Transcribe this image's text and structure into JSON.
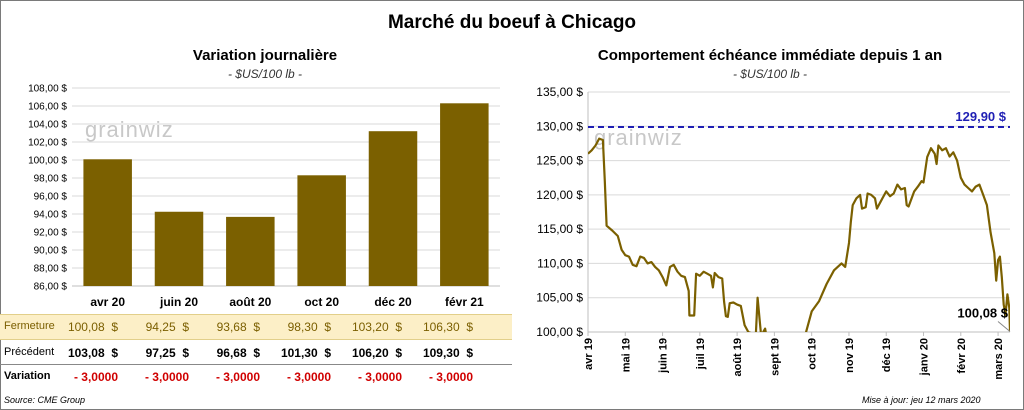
{
  "main_title": "Marché du boeuf à Chicago",
  "watermark": "grainwiz",
  "left": {
    "title": "Variation  journalière",
    "subtitle": "- $US/100 lb -"
  },
  "right": {
    "title": "Comportement  échéance  immédiate  depuis  1  an",
    "subtitle": "- $US/100 lb -"
  },
  "table": {
    "rows": [
      {
        "label": "Fermeture",
        "values": [
          "100,08  $",
          "94,25  $",
          "93,68  $",
          "98,30  $",
          "103,20  $",
          "106,30  $"
        ]
      },
      {
        "label": "Précédent",
        "values": [
          "103,08  $",
          "97,25  $",
          "96,68  $",
          "101,30  $",
          "106,20  $",
          "109,30  $"
        ]
      },
      {
        "label": "Variation",
        "values": [
          "- 3,0000",
          "- 3,0000",
          "- 3,0000",
          "- 3,0000",
          "- 3,0000",
          "- 3,0000"
        ]
      }
    ]
  },
  "footer": {
    "source": "Source: CME Group",
    "update": "Mise à jour: jeu 12 mars 2020"
  },
  "colors": {
    "bar": "#7b6000",
    "line": "#7b6000",
    "ref": "#1f1fb4",
    "highlight_row": "#fcefc7",
    "negative": "#d00000"
  },
  "chart_data": [
    {
      "type": "bar",
      "title": "Variation  journalière",
      "subtitle": "- $US/100 lb -",
      "categories": [
        "avr 20",
        "juin 20",
        "août 20",
        "oct 20",
        "déc 20",
        "févr 21"
      ],
      "values": [
        100.08,
        94.25,
        93.68,
        98.3,
        103.2,
        106.3
      ],
      "ylim": [
        86,
        108
      ],
      "yticks": [
        "86,00 $",
        "88,00 $",
        "90,00 $",
        "92,00 $",
        "94,00 $",
        "96,00 $",
        "98,00 $",
        "100,00 $",
        "102,00 $",
        "104,00 $",
        "106,00 $",
        "108,00 $"
      ],
      "grid": true
    },
    {
      "type": "line",
      "title": "Comportement  échéance  immédiate  depuis  1  an",
      "subtitle": "- $US/100 lb -",
      "ylim": [
        100,
        135
      ],
      "yticks": [
        "100,00 $",
        "105,00 $",
        "110,00 $",
        "115,00 $",
        "120,00 $",
        "125,00 $",
        "130,00 $",
        "135,00 $"
      ],
      "xticks": [
        "avr 19",
        "mai 19",
        "juin 19",
        "juil 19",
        "août 19",
        "sept 19",
        "oct 19",
        "nov 19",
        "déc 19",
        "janv 20",
        "févr 20",
        "mars 20"
      ],
      "reference": {
        "value": 129.9,
        "label": "129,90 $"
      },
      "last": {
        "value": 100.08,
        "label": "100,08 $"
      },
      "series": [
        {
          "x": 0,
          "y": 126.0
        },
        {
          "x": 0.1,
          "y": 126.5
        },
        {
          "x": 0.2,
          "y": 127.2
        },
        {
          "x": 0.3,
          "y": 128.2
        },
        {
          "x": 0.4,
          "y": 128.0
        },
        {
          "x": 0.45,
          "y": 122.0
        },
        {
          "x": 0.5,
          "y": 115.5
        },
        {
          "x": 0.65,
          "y": 114.8
        },
        {
          "x": 0.8,
          "y": 114.0
        },
        {
          "x": 0.9,
          "y": 112.0
        },
        {
          "x": 1.0,
          "y": 111.2
        },
        {
          "x": 1.1,
          "y": 111.0
        },
        {
          "x": 1.2,
          "y": 109.8
        },
        {
          "x": 1.3,
          "y": 109.6
        },
        {
          "x": 1.4,
          "y": 111.0
        },
        {
          "x": 1.5,
          "y": 110.8
        },
        {
          "x": 1.6,
          "y": 110.0
        },
        {
          "x": 1.7,
          "y": 110.2
        },
        {
          "x": 1.8,
          "y": 109.5
        },
        {
          "x": 1.9,
          "y": 109.0
        },
        {
          "x": 2.0,
          "y": 108.0
        },
        {
          "x": 2.1,
          "y": 106.8
        },
        {
          "x": 2.2,
          "y": 109.5
        },
        {
          "x": 2.3,
          "y": 109.8
        },
        {
          "x": 2.4,
          "y": 108.8
        },
        {
          "x": 2.5,
          "y": 108.2
        },
        {
          "x": 2.6,
          "y": 108.0
        },
        {
          "x": 2.7,
          "y": 106.0
        },
        {
          "x": 2.72,
          "y": 102.4
        },
        {
          "x": 2.85,
          "y": 102.4
        },
        {
          "x": 2.9,
          "y": 108.5
        },
        {
          "x": 3.0,
          "y": 108.2
        },
        {
          "x": 3.1,
          "y": 108.8
        },
        {
          "x": 3.2,
          "y": 108.5
        },
        {
          "x": 3.3,
          "y": 108.2
        },
        {
          "x": 3.35,
          "y": 106.5
        },
        {
          "x": 3.4,
          "y": 108.6
        },
        {
          "x": 3.5,
          "y": 108.0
        },
        {
          "x": 3.6,
          "y": 107.8
        },
        {
          "x": 3.65,
          "y": 104.4
        },
        {
          "x": 3.7,
          "y": 102.3
        },
        {
          "x": 3.75,
          "y": 102.2
        },
        {
          "x": 3.8,
          "y": 104.2
        },
        {
          "x": 3.9,
          "y": 104.3
        },
        {
          "x": 4.0,
          "y": 104.0
        },
        {
          "x": 4.1,
          "y": 103.8
        },
        {
          "x": 4.2,
          "y": 101.0
        },
        {
          "x": 4.3,
          "y": 100.0
        },
        {
          "x": 4.4,
          "y": 99.8
        },
        {
          "x": 4.5,
          "y": 99.5
        },
        {
          "x": 4.55,
          "y": 105.0
        },
        {
          "x": 4.6,
          "y": 102.0
        },
        {
          "x": 4.65,
          "y": 99.2
        },
        {
          "x": 4.7,
          "y": 100.0
        },
        {
          "x": 4.75,
          "y": 100.5
        },
        {
          "x": 4.8,
          "y": 99.0
        },
        {
          "x": 5.0,
          "y": 98.8
        },
        {
          "x": 5.3,
          "y": 98.5
        },
        {
          "x": 5.6,
          "y": 98.0
        },
        {
          "x": 5.8,
          "y": 99.0
        },
        {
          "x": 6.0,
          "y": 103.0
        },
        {
          "x": 6.2,
          "y": 104.5
        },
        {
          "x": 6.4,
          "y": 107.0
        },
        {
          "x": 6.6,
          "y": 109.0
        },
        {
          "x": 6.8,
          "y": 110.0
        },
        {
          "x": 6.9,
          "y": 109.5
        },
        {
          "x": 7.0,
          "y": 113.0
        },
        {
          "x": 7.05,
          "y": 116.0
        },
        {
          "x": 7.1,
          "y": 118.5
        },
        {
          "x": 7.2,
          "y": 119.5
        },
        {
          "x": 7.3,
          "y": 120.0
        },
        {
          "x": 7.35,
          "y": 118.0
        },
        {
          "x": 7.45,
          "y": 118.2
        },
        {
          "x": 7.5,
          "y": 120.2
        },
        {
          "x": 7.6,
          "y": 120.0
        },
        {
          "x": 7.7,
          "y": 119.5
        },
        {
          "x": 7.75,
          "y": 118.0
        },
        {
          "x": 7.85,
          "y": 119.0
        },
        {
          "x": 8.0,
          "y": 120.5
        },
        {
          "x": 8.1,
          "y": 119.8
        },
        {
          "x": 8.2,
          "y": 120.2
        },
        {
          "x": 8.3,
          "y": 121.5
        },
        {
          "x": 8.4,
          "y": 120.8
        },
        {
          "x": 8.5,
          "y": 121.0
        },
        {
          "x": 8.55,
          "y": 118.5
        },
        {
          "x": 8.6,
          "y": 118.3
        },
        {
          "x": 8.75,
          "y": 120.5
        },
        {
          "x": 8.85,
          "y": 121.2
        },
        {
          "x": 8.95,
          "y": 122.0
        },
        {
          "x": 9.0,
          "y": 121.8
        },
        {
          "x": 9.1,
          "y": 125.5
        },
        {
          "x": 9.2,
          "y": 126.8
        },
        {
          "x": 9.3,
          "y": 126.0
        },
        {
          "x": 9.35,
          "y": 124.5
        },
        {
          "x": 9.4,
          "y": 127.2
        },
        {
          "x": 9.5,
          "y": 126.5
        },
        {
          "x": 9.6,
          "y": 126.8
        },
        {
          "x": 9.7,
          "y": 125.6
        },
        {
          "x": 9.8,
          "y": 126.2
        },
        {
          "x": 9.9,
          "y": 125.0
        },
        {
          "x": 10.0,
          "y": 122.5
        },
        {
          "x": 10.1,
          "y": 121.5
        },
        {
          "x": 10.2,
          "y": 121.0
        },
        {
          "x": 10.3,
          "y": 120.5
        },
        {
          "x": 10.4,
          "y": 121.2
        },
        {
          "x": 10.5,
          "y": 121.5
        },
        {
          "x": 10.6,
          "y": 120.0
        },
        {
          "x": 10.7,
          "y": 118.5
        },
        {
          "x": 10.8,
          "y": 114.5
        },
        {
          "x": 10.9,
          "y": 111.5
        },
        {
          "x": 10.95,
          "y": 107.5
        },
        {
          "x": 11.0,
          "y": 110.5
        },
        {
          "x": 11.05,
          "y": 111.0
        },
        {
          "x": 11.1,
          "y": 108.0
        },
        {
          "x": 11.15,
          "y": 104.0
        },
        {
          "x": 11.2,
          "y": 102.5
        },
        {
          "x": 11.25,
          "y": 105.5
        },
        {
          "x": 11.3,
          "y": 103.5
        },
        {
          "x": 11.32,
          "y": 100.08
        }
      ]
    }
  ]
}
